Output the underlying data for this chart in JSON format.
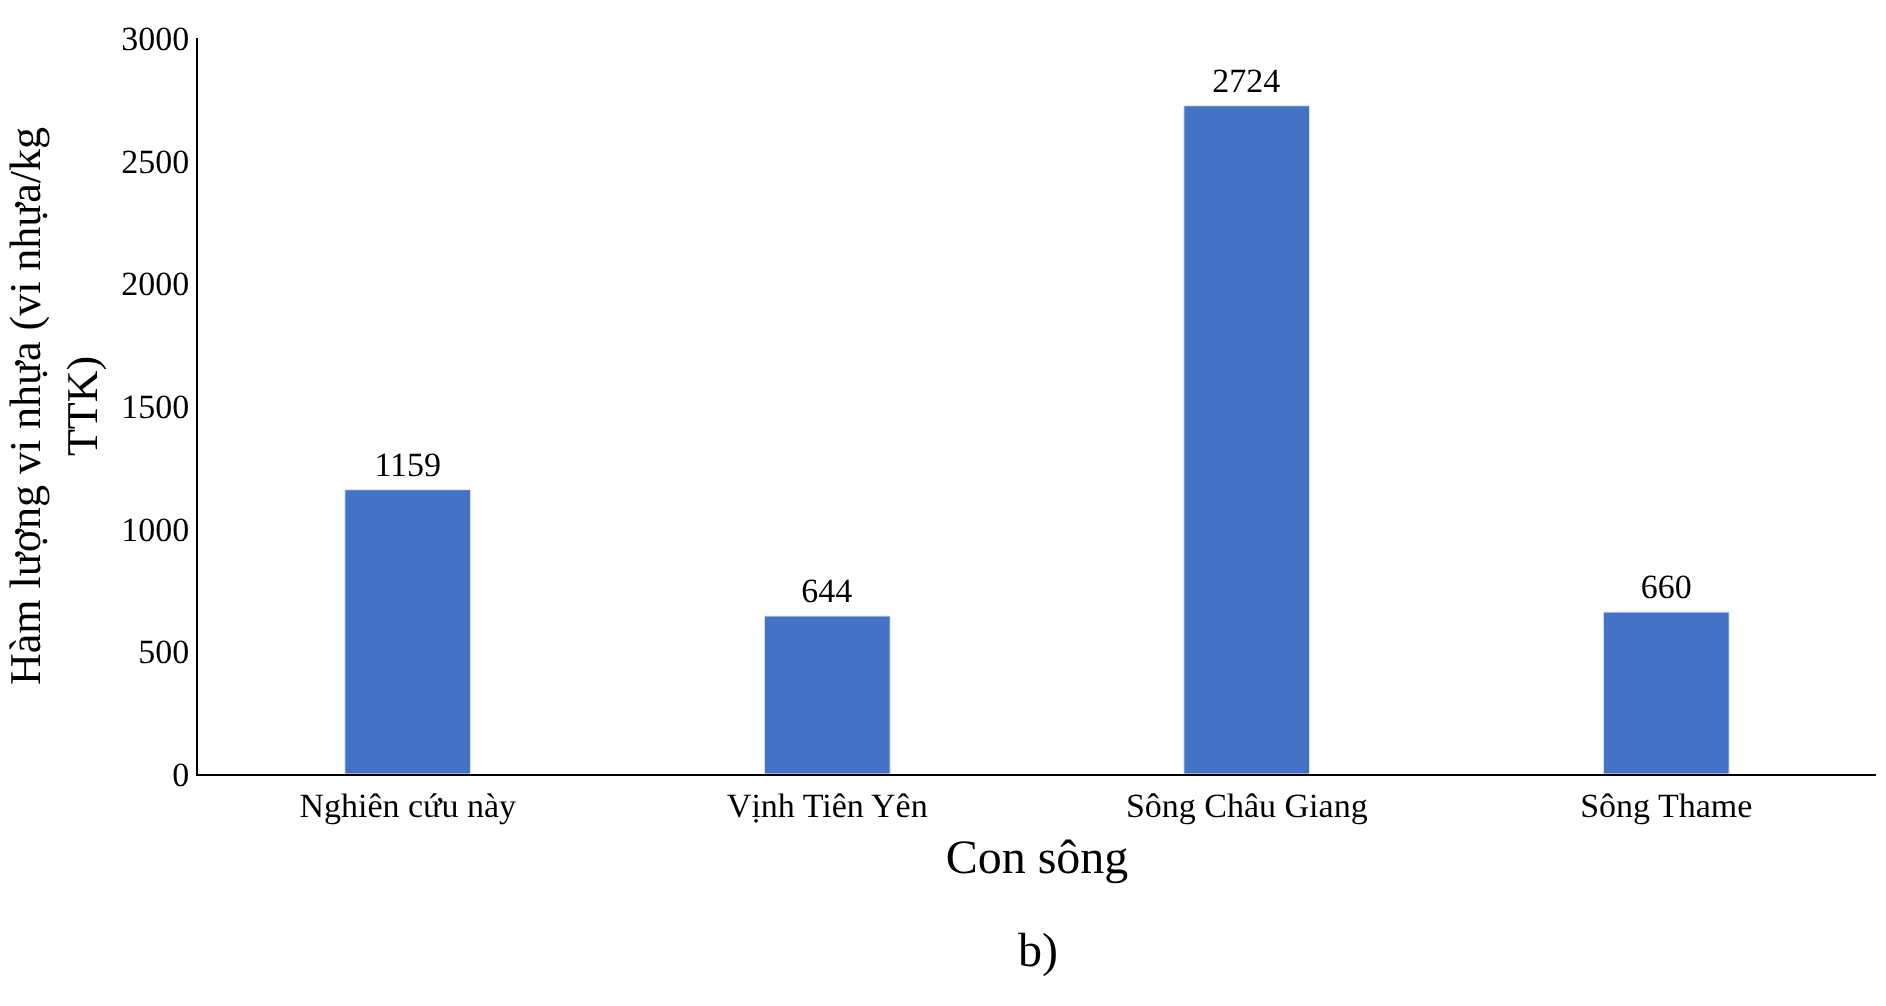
{
  "chart_data": {
    "type": "bar",
    "categories": [
      "Nghiên cứu này",
      "Vịnh Tiên Yên",
      "Sông Châu Giang",
      "Sông Thame"
    ],
    "values": [
      1159,
      644,
      2724,
      660
    ],
    "color": "#4472c4",
    "xlabel": "Con sông",
    "ylabel": "Hàm lượng vi nhựa (vi nhựa/kg TTK)",
    "ylim": [
      0,
      3000
    ],
    "yticks": [
      0,
      500,
      1000,
      1500,
      2000,
      2500,
      3000
    ],
    "data_labels": true,
    "grid": false,
    "legend": false,
    "annotations": [
      "b)"
    ]
  }
}
